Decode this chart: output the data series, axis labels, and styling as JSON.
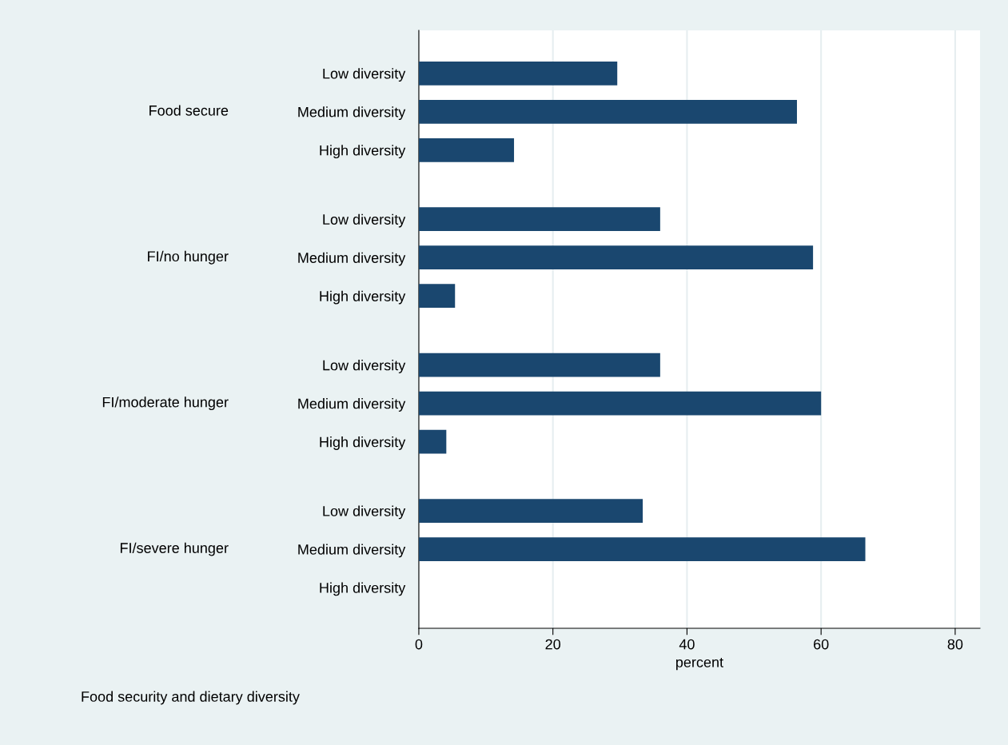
{
  "chart_data": {
    "type": "bar",
    "orientation": "horizontal",
    "xlabel": "percent",
    "categories": [
      "Low diversity",
      "Medium diversity",
      "High diversity",
      "Low diversity",
      "Medium diversity",
      "High diversity",
      "Low diversity",
      "Medium diversity",
      "High diversity",
      "Low diversity",
      "Medium diversity",
      "High diversity"
    ],
    "values": [
      29.6,
      56.4,
      14.2,
      36.0,
      58.8,
      5.4,
      36.0,
      60.0,
      4.1,
      33.4,
      66.6,
      0
    ],
    "color": "#1a476f",
    "xlim": [
      0,
      83.7
    ],
    "xticks": [
      0,
      20,
      40,
      60,
      80
    ],
    "grid": "x",
    "legend": false,
    "annotations": [
      "Food secure",
      "FI/no hunger",
      "FI/moderate hunger",
      "FI/severe hunger",
      "Food security and dietary diversity"
    ]
  }
}
